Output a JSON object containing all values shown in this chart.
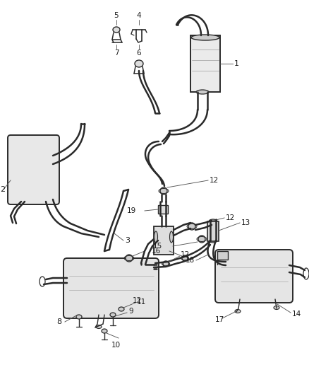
{
  "background_color": "#ffffff",
  "line_color": "#2a2a2a",
  "label_color": "#1a1a1a",
  "lw_pipe": 1.8,
  "lw_thin": 0.7,
  "figsize": [
    4.38,
    5.33
  ],
  "dpi": 100
}
